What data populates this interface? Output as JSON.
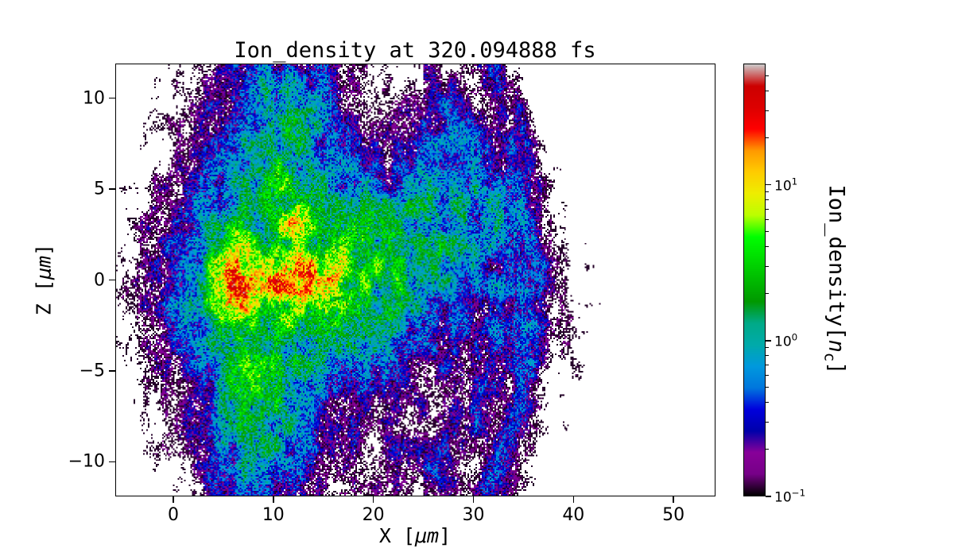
{
  "chart_data": {
    "type": "heatmap",
    "title": "Ion_density at 320.094888 fs",
    "xlabel_prefix": "X [",
    "xlabel_unit": "μm",
    "xlabel_suffix": "]",
    "ylabel_prefix": "Z [",
    "ylabel_unit": "μm",
    "ylabel_suffix": "]",
    "colorbar_label_prefix": "Ion_density[",
    "colorbar_label_var": "n",
    "colorbar_label_sub": "c",
    "colorbar_label_suffix": "]",
    "xlim": [
      -5.8,
      54.2
    ],
    "ylim": [
      -11.9,
      11.9
    ],
    "x_ticks": [
      {
        "v": 0,
        "label": "0"
      },
      {
        "v": 10,
        "label": "10"
      },
      {
        "v": 20,
        "label": "20"
      },
      {
        "v": 30,
        "label": "30"
      },
      {
        "v": 40,
        "label": "40"
      },
      {
        "v": 50,
        "label": "50"
      }
    ],
    "y_ticks": [
      {
        "v": -10,
        "label": "−10"
      },
      {
        "v": -5,
        "label": "−5"
      },
      {
        "v": 0,
        "label": "0"
      },
      {
        "v": 5,
        "label": "5"
      },
      {
        "v": 10,
        "label": "10"
      }
    ],
    "scale": "log",
    "vmin": 0.1,
    "vmax": 60,
    "colorbar_ticks": [
      {
        "v": 10,
        "base": "10",
        "exp": "1"
      },
      {
        "v": 1,
        "base": "10",
        "exp": "0"
      },
      {
        "v": 0.1,
        "base": "10",
        "exp": "−1"
      }
    ],
    "colormap": "nipy_spectral",
    "colormap_stops": [
      [
        0.0,
        0,
        0,
        0
      ],
      [
        0.05,
        0.4667,
        0,
        0.5333
      ],
      [
        0.1,
        0.5333,
        0,
        0.6
      ],
      [
        0.15,
        0,
        0,
        0.6667
      ],
      [
        0.2,
        0,
        0,
        0.8667
      ],
      [
        0.25,
        0,
        0.4667,
        0.8667
      ],
      [
        0.3,
        0,
        0.6,
        0.8667
      ],
      [
        0.35,
        0,
        0.6667,
        0.6667
      ],
      [
        0.4,
        0,
        0.6667,
        0.5333
      ],
      [
        0.45,
        0,
        0.6,
        0
      ],
      [
        0.5,
        0,
        0.7333,
        0
      ],
      [
        0.55,
        0,
        0.8667,
        0
      ],
      [
        0.6,
        0,
        1,
        0
      ],
      [
        0.65,
        0.7333,
        1,
        0
      ],
      [
        0.7,
        0.9333,
        0.9333,
        0
      ],
      [
        0.75,
        1,
        0.8,
        0
      ],
      [
        0.8,
        1,
        0.6,
        0
      ],
      [
        0.85,
        1,
        0,
        0
      ],
      [
        0.9,
        0.8667,
        0,
        0
      ],
      [
        0.95,
        0.8,
        0,
        0
      ],
      [
        1.0,
        0.8,
        0.8,
        0.8
      ]
    ],
    "background": "#ffffff",
    "density_model": {
      "note": "Approximation of plotted 2D ion density field in units of n_c on a log color scale; dense hot core (red, ~20-30 n_c) near x=5-16 um, z=0; green plasma body |z|<4 extending to x~28; cyan/blue halo and vertical column x~5-15 spanning all z; sparse purple speckle out to x~40 with curved arc filaments on the right.",
      "components": [
        {
          "t": "g",
          "a": 0.22,
          "x": 8,
          "z": 0,
          "sx": 9,
          "sz": 14
        },
        {
          "t": "g",
          "a": 0.16,
          "x": 20,
          "z": 0,
          "sx": 16,
          "sz": 8
        },
        {
          "t": "g",
          "a": 0.12,
          "x": 32,
          "z": -3,
          "sx": 8,
          "sz": 8
        },
        {
          "t": "g",
          "a": 0.14,
          "x": 24,
          "z": -10,
          "sx": 7,
          "sz": 4
        },
        {
          "t": "g",
          "a": 0.15,
          "x": 28,
          "z": 7,
          "sx": 6,
          "sz": 4
        },
        {
          "t": "g",
          "a": 0.55,
          "x": 9.5,
          "z": 0,
          "sx": 5.5,
          "sz": 12
        },
        {
          "t": "g",
          "a": 0.9,
          "x": 9.5,
          "z": 0,
          "sx": 4.5,
          "sz": 8
        },
        {
          "t": "g",
          "a": 0.6,
          "x": 8.5,
          "z": -10,
          "sx": 4,
          "sz": 3
        },
        {
          "t": "g",
          "a": 0.8,
          "x": 11,
          "z": 8,
          "sx": 2.6,
          "sz": 3.2
        },
        {
          "t": "g",
          "a": 0.5,
          "x": 13,
          "z": 10,
          "sx": 4,
          "sz": 2.5
        },
        {
          "t": "g",
          "a": 1.1,
          "x": 13,
          "z": 0,
          "sx": 10,
          "sz": 5.2
        },
        {
          "t": "g",
          "a": 1.2,
          "x": 26,
          "z": 2.5,
          "sx": 3.2,
          "sz": 2.8
        },
        {
          "t": "g",
          "a": 0.7,
          "x": 30,
          "z": 4.5,
          "sx": 3.5,
          "sz": 1.6
        },
        {
          "t": "g",
          "a": 0.55,
          "x": 33.5,
          "z": 2.5,
          "sx": 2.2,
          "sz": 1.8
        },
        {
          "t": "g",
          "a": 0.45,
          "x": 35,
          "z": 0,
          "sx": 1.8,
          "sz": 2.5
        },
        {
          "t": "g",
          "a": 0.6,
          "x": 27,
          "z": 8.5,
          "sx": 3,
          "sz": 1.4
        },
        {
          "t": "g",
          "a": 3.8,
          "x": 12.5,
          "z": 0,
          "sx": 7.5,
          "sz": 3.0
        },
        {
          "t": "g",
          "a": 1.8,
          "x": 21,
          "z": 1,
          "sx": 7,
          "sz": 3.2
        },
        {
          "t": "g",
          "a": 2.5,
          "x": 8,
          "z": -6,
          "sx": 3,
          "sz": 2.6
        },
        {
          "t": "g",
          "a": 3.0,
          "x": 11,
          "z": 5,
          "sx": 1.6,
          "sz": 1.8
        },
        {
          "t": "g",
          "a": 2.0,
          "x": 13,
          "z": 3.5,
          "sx": 2.5,
          "sz": 1.5
        },
        {
          "t": "g",
          "a": 22,
          "x": 11.5,
          "z": 0,
          "sx": 4.5,
          "sz": 1.15
        },
        {
          "t": "g",
          "a": 26,
          "x": 6.2,
          "z": -0.3,
          "sx": 1.7,
          "sz": 1.8
        },
        {
          "t": "g",
          "a": 7,
          "x": 12,
          "z": 3.2,
          "sx": 1.2,
          "sz": 0.8
        },
        {
          "t": "g",
          "a": 5,
          "x": 14.5,
          "z": 0.3,
          "sx": 2.5,
          "sz": 0.9
        },
        {
          "t": "r",
          "a": 0.35,
          "x": 22,
          "z": 0,
          "r": 14,
          "w": 1.2,
          "k": 0.85,
          "xmin": 26
        },
        {
          "t": "r",
          "a": 0.3,
          "x": 22,
          "z": 0,
          "r": 10.5,
          "w": 1.0,
          "k": 0.9,
          "xmin": 25
        }
      ],
      "noise": {
        "octave1_freq": 0.9,
        "octave2_freq": 2.8,
        "mix": [
          0.6,
          0.4
        ],
        "power": 1.8,
        "base": 0.15,
        "amp": 1.6,
        "cell_base": 0.35,
        "cell_amp": 1.3
      },
      "white_threshold": 0.075
    }
  }
}
